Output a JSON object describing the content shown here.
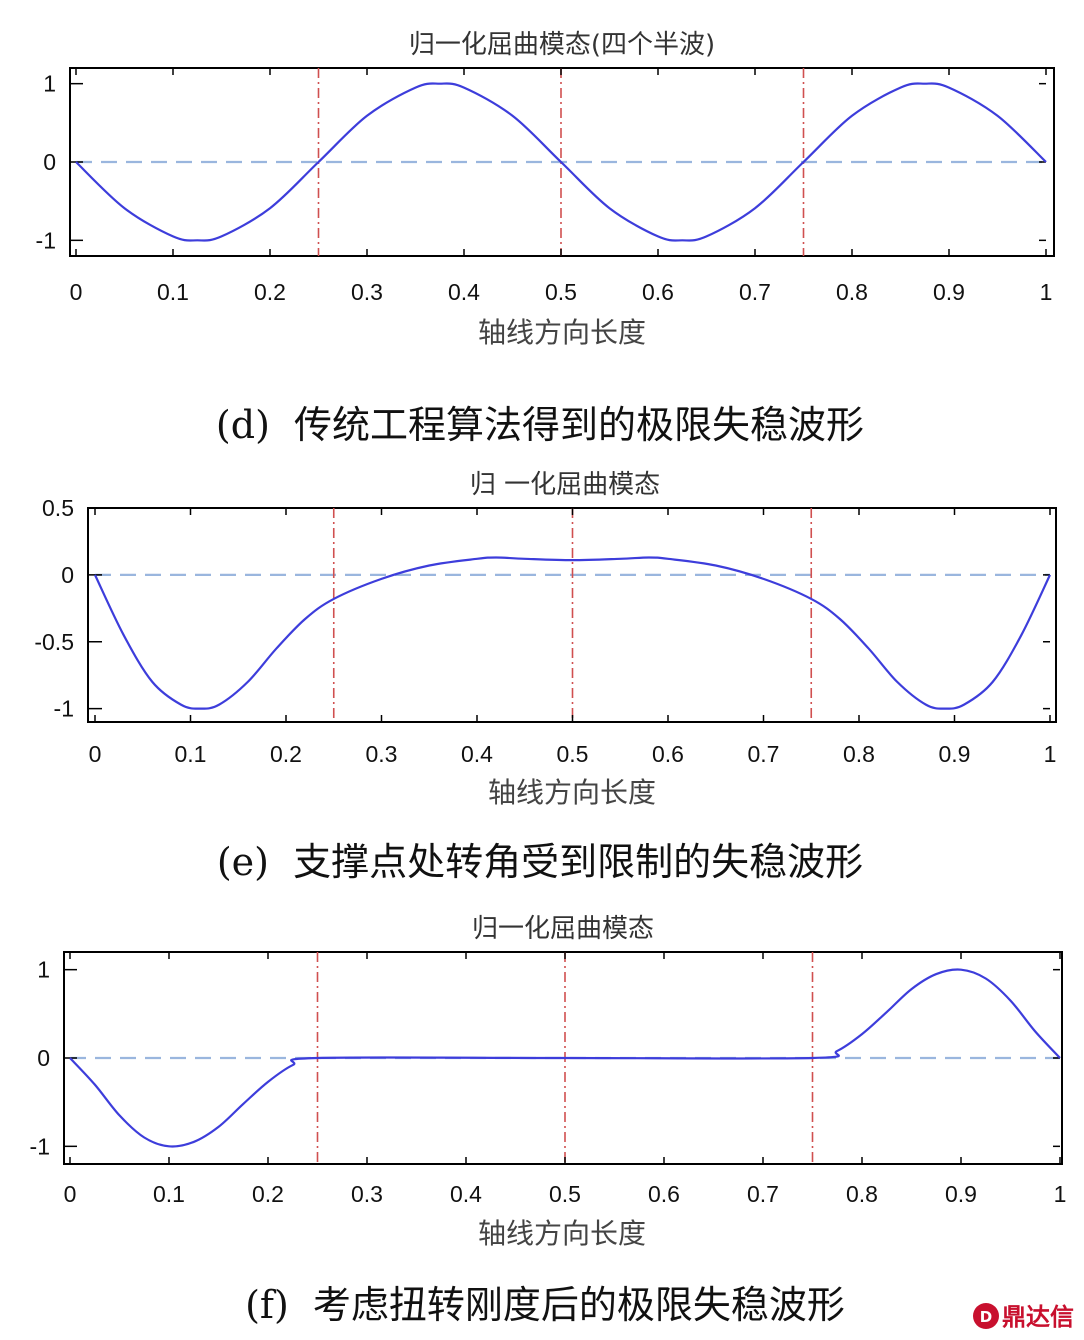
{
  "chart_data": [
    {
      "type": "line",
      "title": "归一化屈曲模态(四个半波)",
      "xlabel": "轴线方向长度",
      "caption": "(d)  传统工程算法得到的极限失稳波形",
      "xlim": [
        0,
        1
      ],
      "ylim": [
        -1.2,
        1.2
      ],
      "xticks": [
        "0",
        "0.1",
        "0.2",
        "0.3",
        "0.4",
        "0.5",
        "0.6",
        "0.7",
        "0.8",
        "0.9",
        "1"
      ],
      "yticks": [
        {
          "v": 1,
          "t": "1"
        },
        {
          "v": 0,
          "t": "0"
        },
        {
          "v": -1,
          "t": "-1"
        }
      ],
      "vlines": [
        0.25,
        0.5,
        0.75
      ],
      "baseline": 0,
      "series": [
        {
          "x": [
            0,
            0.05,
            0.1,
            0.125,
            0.15,
            0.2,
            0.25,
            0.3,
            0.35,
            0.375,
            0.4,
            0.45,
            0.5,
            0.55,
            0.6,
            0.625,
            0.65,
            0.7,
            0.75,
            0.8,
            0.85,
            0.875,
            0.9,
            0.95,
            1
          ],
          "y": [
            0,
            -0.59,
            -0.95,
            -1,
            -0.95,
            -0.59,
            0,
            0.59,
            0.95,
            1,
            0.95,
            0.59,
            0,
            -0.59,
            -0.95,
            -1,
            -0.95,
            -0.59,
            0,
            0.59,
            0.95,
            1,
            0.95,
            0.59,
            0
          ]
        }
      ]
    },
    {
      "type": "line",
      "title": "归 一化屈曲模态",
      "xlabel": "轴线方向长度",
      "caption": "(e)  支撑点处转角受到限制的失稳波形",
      "xlim": [
        0,
        1
      ],
      "ylim": [
        -1.1,
        0.5
      ],
      "xticks": [
        "0",
        "0.1",
        "0.2",
        "0.3",
        "0.4",
        "0.5",
        "0.6",
        "0.7",
        "0.8",
        "0.9",
        "1"
      ],
      "yticks": [
        {
          "v": 0.5,
          "t": "0.5"
        },
        {
          "v": 0,
          "t": "0"
        },
        {
          "v": -0.5,
          "t": "-0.5"
        },
        {
          "v": -1,
          "t": "-1"
        }
      ],
      "vlines": [
        0.25,
        0.5,
        0.75
      ],
      "baseline": 0,
      "series": [
        {
          "x": [
            0,
            0.03,
            0.06,
            0.09,
            0.11,
            0.13,
            0.16,
            0.19,
            0.22,
            0.25,
            0.3,
            0.35,
            0.4,
            0.42,
            0.45,
            0.5,
            0.55,
            0.58,
            0.6,
            0.65,
            0.7,
            0.75,
            0.78,
            0.81,
            0.84,
            0.87,
            0.89,
            0.91,
            0.94,
            0.97,
            1
          ],
          "y": [
            0,
            -0.45,
            -0.8,
            -0.97,
            -1,
            -0.97,
            -0.8,
            -0.55,
            -0.33,
            -0.18,
            -0.03,
            0.07,
            0.12,
            0.13,
            0.12,
            0.11,
            0.12,
            0.13,
            0.12,
            0.07,
            -0.03,
            -0.18,
            -0.33,
            -0.55,
            -0.8,
            -0.97,
            -1,
            -0.97,
            -0.8,
            -0.45,
            0
          ]
        }
      ]
    },
    {
      "type": "line",
      "title": "归一化屈曲模态",
      "xlabel": "轴线方向长度",
      "caption": "(f)  考虑扭转刚度后的极限失稳波形",
      "xlim": [
        0,
        1
      ],
      "ylim": [
        -1.2,
        1.2
      ],
      "xticks": [
        "0",
        "0.1",
        "0.2",
        "0.3",
        "0.4",
        "0.5",
        "0.6",
        "0.7",
        "0.8",
        "0.9",
        "1"
      ],
      "yticks": [
        {
          "v": 1,
          "t": "1"
        },
        {
          "v": 0,
          "t": "0"
        },
        {
          "v": -1,
          "t": "-1"
        }
      ],
      "vlines": [
        0.25,
        0.5,
        0.75
      ],
      "baseline": 0,
      "series": [
        {
          "x": [
            0,
            0.025,
            0.05,
            0.075,
            0.1,
            0.125,
            0.15,
            0.175,
            0.2,
            0.225,
            0.25,
            0.5,
            0.75,
            0.775,
            0.8,
            0.825,
            0.85,
            0.875,
            0.9,
            0.925,
            0.95,
            0.975,
            1
          ],
          "y": [
            0,
            -0.3,
            -0.65,
            -0.9,
            -1,
            -0.95,
            -0.78,
            -0.52,
            -0.27,
            -0.08,
            0,
            0,
            0,
            0.08,
            0.27,
            0.52,
            0.78,
            0.95,
            1,
            0.9,
            0.65,
            0.3,
            0
          ]
        }
      ]
    }
  ],
  "watermark": {
    "text": "鼎达信"
  },
  "colors": {
    "curve": "#3d3ddb",
    "baseline": "#9ab6de",
    "vline": "#d05050",
    "axis": "#000000"
  }
}
